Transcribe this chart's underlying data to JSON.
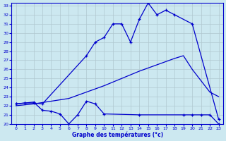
{
  "xlabel": "Graphe des températures (°c)",
  "bg_color": "#cce8f0",
  "grid_color": "#b0c8d0",
  "line_color": "#0000cc",
  "ylim": [
    20,
    33
  ],
  "xlim": [
    -0.5,
    23.5
  ],
  "yticks": [
    20,
    21,
    22,
    23,
    24,
    25,
    26,
    27,
    28,
    29,
    30,
    31,
    32,
    33
  ],
  "xticks": [
    0,
    1,
    2,
    3,
    4,
    5,
    6,
    7,
    8,
    9,
    10,
    11,
    12,
    13,
    14,
    15,
    16,
    17,
    18,
    19,
    20,
    21,
    22,
    23
  ],
  "line1_x": [
    0,
    1,
    2,
    3,
    8,
    9,
    10,
    11,
    12,
    13,
    14,
    15,
    16,
    17,
    18,
    20,
    23
  ],
  "line1_y": [
    22.2,
    22.3,
    22.3,
    22.2,
    27.5,
    29.0,
    29.5,
    31.0,
    31.0,
    29.0,
    31.5,
    33.3,
    32.0,
    32.5,
    32.0,
    31.0,
    20.5
  ],
  "line2_x": [
    0,
    2,
    4,
    6,
    8,
    10,
    12,
    14,
    16,
    18,
    19,
    20,
    22,
    23
  ],
  "line2_y": [
    22.0,
    22.2,
    22.5,
    22.8,
    23.5,
    24.2,
    25.0,
    25.8,
    26.5,
    27.2,
    27.5,
    26.0,
    23.5,
    23.0
  ],
  "line3_x": [
    0,
    1,
    2,
    3,
    4,
    5,
    6,
    7,
    8,
    9,
    10,
    14,
    19,
    20,
    21,
    22,
    23
  ],
  "line3_y": [
    22.2,
    22.3,
    22.4,
    21.5,
    21.4,
    21.1,
    20.0,
    21.0,
    22.5,
    22.2,
    21.1,
    21.0,
    21.0,
    21.0,
    21.0,
    21.0,
    20.0
  ]
}
